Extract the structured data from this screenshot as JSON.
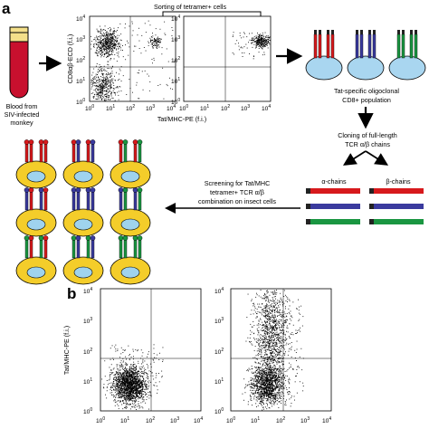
{
  "panel_a": {
    "letter": "a",
    "blood_label_1": "Blood from",
    "blood_label_2": "SIV-infected",
    "blood_label_3": "monkey",
    "sorting_label": "Sorting of tetramer+ cells",
    "y_axis_label": "CD8αβ-ECD (f.i.)",
    "x_axis_label": "Tat/MHC-PE (f.i.)",
    "population_1": "Tat-specific oligoclonal",
    "population_2": "CD8+ population",
    "cloning_1": "Cloning of full-length",
    "cloning_2": "TCR α/β chains",
    "alpha_label": "α-chains",
    "beta_label": "β-chains",
    "screening_1": "Screening for Tat/MHC",
    "screening_2": "tetramer+ TCR α/β",
    "screening_3": "combination on insect cells"
  },
  "panel_b": {
    "letter": "b",
    "y_axis_label": "Tat/MHC-PE (f.i.)"
  },
  "tick_labels": {
    "exponents": [
      "0",
      "1",
      "2",
      "3",
      "4"
    ],
    "base": "10"
  },
  "colors": {
    "tube_red": "#c8102e",
    "tube_cap": "#f4e08a",
    "cell_yellow": "#f5c518",
    "cell_blue": "#a9d6f0",
    "receptor_red": "#d7191c",
    "receptor_blue": "#3a3a9e",
    "receptor_green": "#1a9641",
    "insect_cell": "#f4cd2a",
    "insect_nucleus": "#9fd3ee"
  }
}
